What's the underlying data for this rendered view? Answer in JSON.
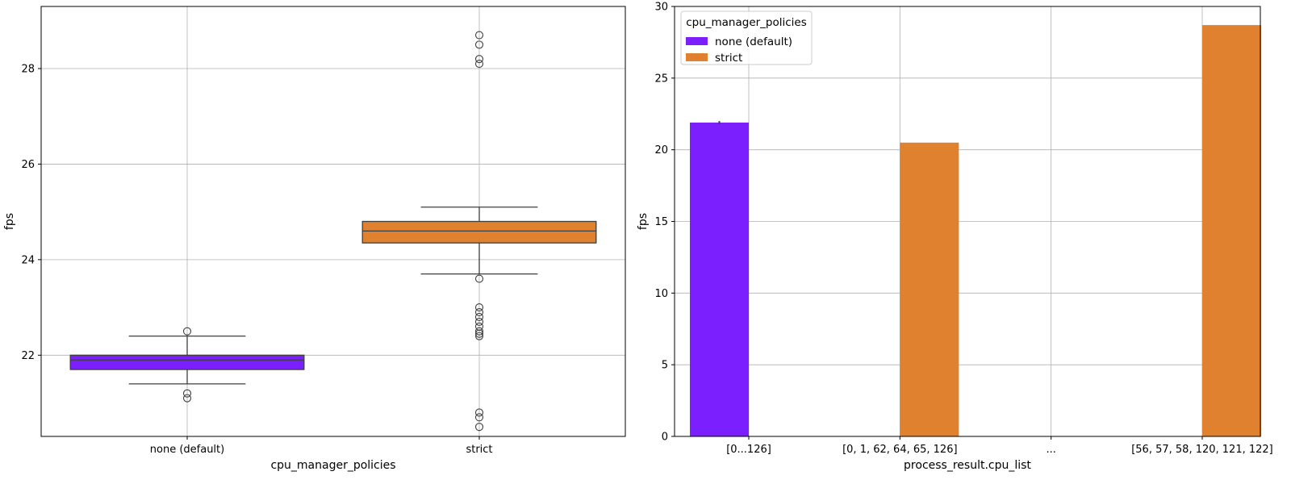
{
  "chart_data": [
    {
      "type": "box",
      "xlabel": "cpu_manager_policies",
      "ylabel": "fps",
      "ylim": [
        20.3,
        29.3
      ],
      "yticks": [
        "22",
        "24",
        "26",
        "28"
      ],
      "grid": true,
      "categories": [
        "none (default)",
        "strict"
      ],
      "boxes": [
        {
          "name": "none (default)",
          "color": "#7b1fff",
          "whisker_low": 21.4,
          "q1": 21.7,
          "median": 21.9,
          "q3": 22.0,
          "whisker_high": 22.4,
          "outliers": [
            22.5,
            21.2,
            21.1
          ]
        },
        {
          "name": "strict",
          "color": "#e0812f",
          "whisker_low": 23.7,
          "q1": 24.35,
          "median": 24.6,
          "q3": 24.8,
          "whisker_high": 25.1,
          "outliers": [
            28.7,
            28.5,
            28.2,
            28.1,
            23.6,
            23.0,
            22.9,
            22.8,
            22.7,
            22.6,
            22.5,
            22.45,
            22.4,
            20.8,
            20.7,
            20.5
          ]
        }
      ]
    },
    {
      "type": "bar",
      "xlabel": "process_result.cpu_list",
      "ylabel": "fps",
      "ylim": [
        0,
        30
      ],
      "yticks": [
        "0",
        "5",
        "10",
        "15",
        "20",
        "25",
        "30"
      ],
      "grid": true,
      "categories": [
        "[0...126]",
        "[0, 1, 62, 64, 65, 126]",
        "...",
        "[56, 57, 58, 120, 121, 122]"
      ],
      "legend": {
        "title": "cpu_manager_policies",
        "placement": "top-left",
        "entries": [
          "none (default)",
          "strict"
        ]
      },
      "series": [
        {
          "name": "none (default)",
          "color": "#7b1fff",
          "values": [
            21.9,
            null,
            null,
            null
          ],
          "errors": [
            0.1,
            null,
            null,
            null
          ]
        },
        {
          "name": "strict",
          "color": "#e0812f",
          "values": [
            null,
            20.5,
            null,
            28.7
          ],
          "errors": [
            null,
            null,
            null,
            null
          ]
        }
      ]
    }
  ]
}
